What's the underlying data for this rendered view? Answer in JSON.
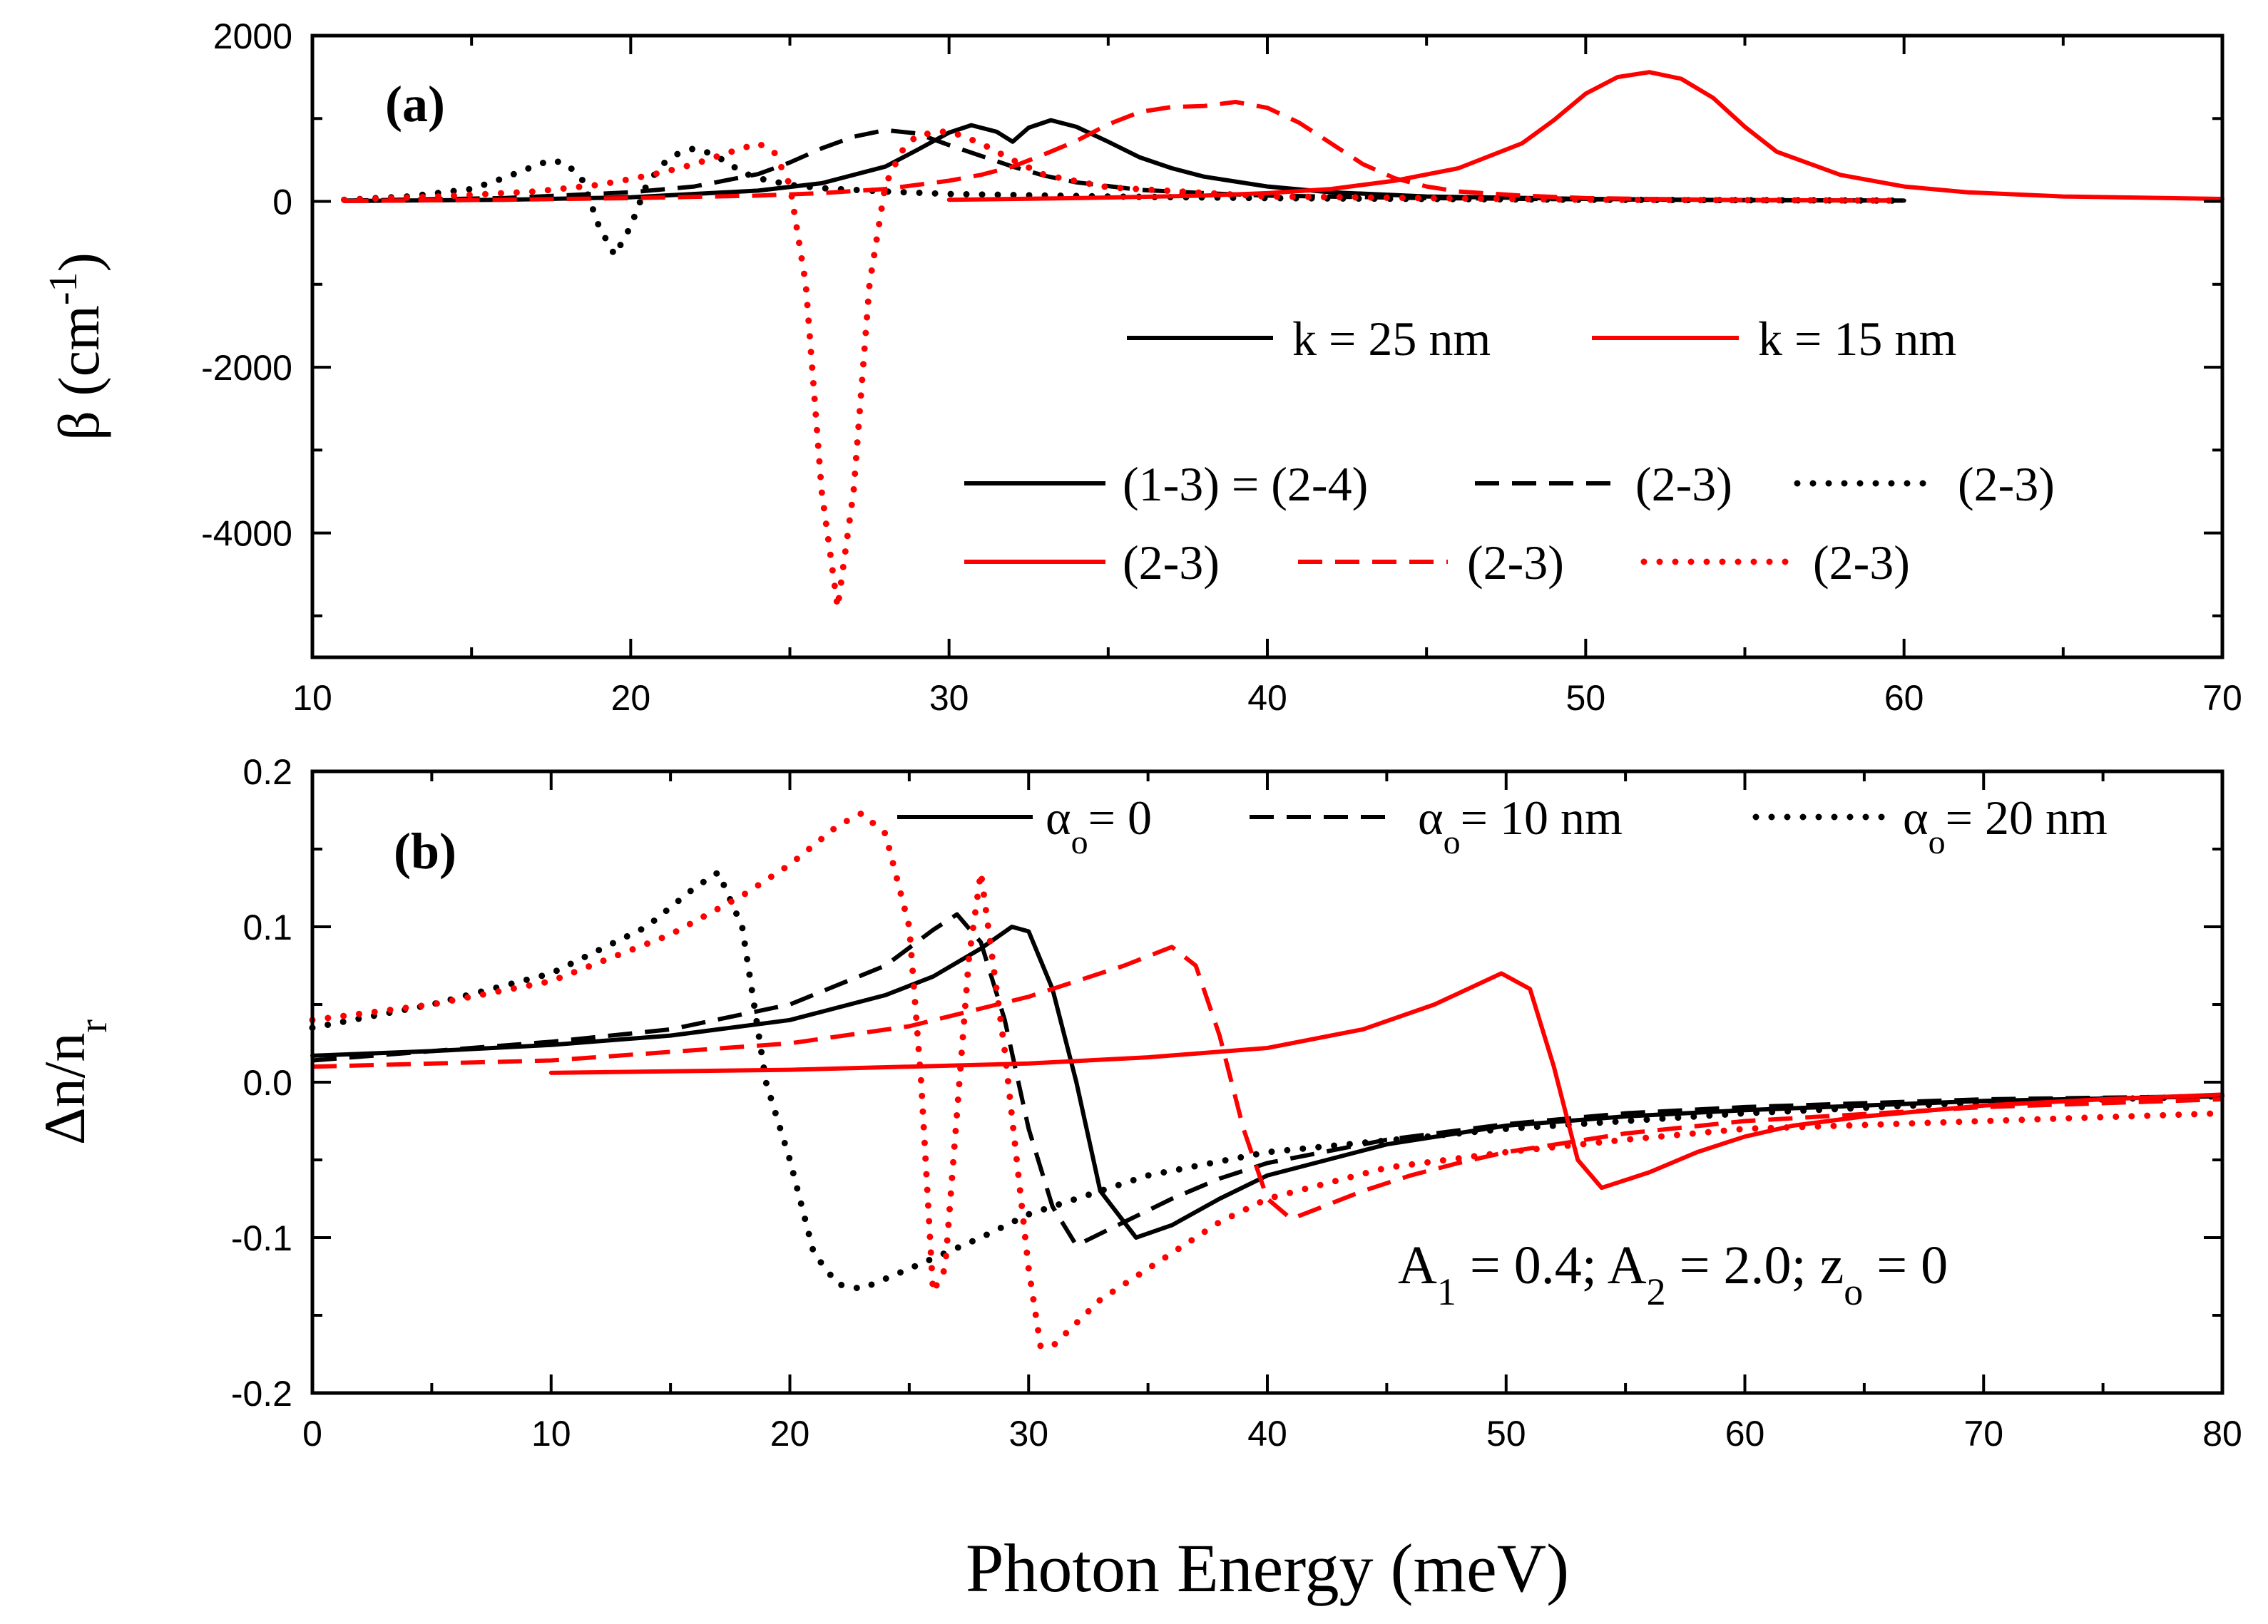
{
  "xlabel": "Photon Energy (meV)",
  "chart_data": [
    {
      "id": "a",
      "type": "line",
      "panel_label": "(a)",
      "ylabel": "β (cm",
      "ylabel_sup": "-1",
      "ylabel_close": ")",
      "xlim": [
        10,
        70
      ],
      "ylim": [
        -5500,
        2000
      ],
      "xticks": [
        10,
        20,
        30,
        40,
        50,
        60,
        70
      ],
      "xtick_labels": [
        "10",
        "20",
        "30",
        "40",
        "50",
        "60",
        "70"
      ],
      "yticks": [
        2000,
        0,
        -2000,
        -4000
      ],
      "ytick_labels": [
        "2000",
        "0",
        "-2000",
        "-4000"
      ],
      "legend": {
        "k_labels": [
          "k = 25 nm",
          "k = 15 nm"
        ],
        "row1": [
          "(1-3) = (2-4)",
          "(2-3)",
          "(2-3)"
        ],
        "row2": [
          "(2-3)",
          "(2-3)",
          "(2-3)"
        ]
      },
      "series": [
        {
          "name": "k=25 nm solid",
          "color": "#000000",
          "style": "solid",
          "x": [
            11,
            16,
            20,
            24,
            26,
            28,
            29,
            30,
            30.7,
            31.5,
            32,
            32.5,
            33.2,
            34,
            35,
            36,
            37,
            38,
            40,
            42,
            45,
            50,
            55,
            60
          ],
          "y": [
            5,
            20,
            50,
            130,
            220,
            420,
            620,
            830,
            920,
            840,
            720,
            890,
            980,
            900,
            720,
            530,
            400,
            300,
            180,
            110,
            60,
            30,
            15,
            10
          ]
        },
        {
          "name": "k=25 nm dashed",
          "color": "#000000",
          "style": "dashed",
          "x": [
            11,
            16,
            20,
            22,
            24,
            25,
            26,
            27,
            28,
            29,
            30,
            31,
            32,
            33,
            34,
            36,
            38,
            40,
            45,
            50,
            55,
            60
          ],
          "y": [
            10,
            40,
            110,
            180,
            330,
            470,
            640,
            780,
            860,
            820,
            680,
            550,
            420,
            310,
            230,
            140,
            100,
            70,
            40,
            25,
            15,
            10
          ]
        },
        {
          "name": "k=25 nm dotted",
          "color": "#000000",
          "style": "dotted",
          "x": [
            11,
            13,
            15,
            16,
            17,
            17.5,
            18,
            18.5,
            19,
            19.5,
            20,
            20.5,
            21,
            21.5,
            22,
            22.5,
            23,
            23.5,
            24,
            25,
            26,
            28,
            30,
            35,
            40,
            50,
            60
          ],
          "y": [
            20,
            60,
            150,
            280,
            430,
            500,
            450,
            250,
            -300,
            -650,
            -300,
            200,
            450,
            580,
            640,
            580,
            480,
            350,
            280,
            200,
            160,
            120,
            90,
            60,
            40,
            20,
            10
          ]
        },
        {
          "name": "k=15 nm solid",
          "color": "#ff0000",
          "style": "solid",
          "x": [
            30,
            34,
            38,
            40,
            42,
            44,
            46,
            48,
            49,
            50,
            51,
            52,
            53,
            54,
            55,
            56,
            58,
            60,
            62,
            65,
            70
          ],
          "y": [
            20,
            40,
            70,
            100,
            150,
            250,
            400,
            700,
            980,
            1300,
            1500,
            1560,
            1480,
            1250,
            900,
            600,
            320,
            180,
            110,
            60,
            30
          ]
        },
        {
          "name": "k=15 nm dashed",
          "color": "#ff0000",
          "style": "dashed",
          "x": [
            11,
            16,
            20,
            24,
            26,
            28,
            30,
            31,
            32,
            33,
            34,
            35,
            36,
            37,
            38,
            39,
            40,
            41,
            42,
            43,
            44,
            45,
            46,
            48,
            50,
            55,
            60
          ],
          "y": [
            5,
            20,
            40,
            70,
            100,
            150,
            250,
            320,
            420,
            570,
            730,
            930,
            1080,
            1140,
            1150,
            1200,
            1130,
            950,
            700,
            450,
            280,
            180,
            120,
            70,
            40,
            15,
            10
          ]
        },
        {
          "name": "k=15 nm dotted",
          "color": "#ff0000",
          "style": "dotted",
          "x": [
            11,
            14,
            17,
            19,
            20,
            21,
            22,
            23,
            23.5,
            24,
            24.5,
            25,
            25.5,
            26,
            26.5,
            27,
            27.5,
            28,
            28.5,
            29,
            30,
            31,
            32,
            33,
            35,
            40,
            50,
            60
          ],
          "y": [
            20,
            60,
            120,
            200,
            270,
            350,
            450,
            580,
            640,
            700,
            600,
            200,
            -1000,
            -3500,
            -4900,
            -3500,
            -1000,
            200,
            600,
            800,
            850,
            700,
            500,
            320,
            170,
            60,
            20,
            10
          ]
        }
      ]
    },
    {
      "id": "b",
      "type": "line",
      "panel_label": "(b)",
      "ylabel": "Δn/n",
      "ylabel_sub": "r",
      "xlim": [
        0,
        80
      ],
      "ylim": [
        -0.2,
        0.2
      ],
      "xticks": [
        0,
        10,
        20,
        30,
        40,
        50,
        60,
        70,
        80
      ],
      "xtick_labels": [
        "0",
        "10",
        "20",
        "30",
        "40",
        "50",
        "60",
        "70",
        "80"
      ],
      "yticks": [
        0.2,
        0.1,
        0.0,
        -0.1,
        -0.2
      ],
      "ytick_labels": [
        "0.2",
        "0.1",
        "0.0",
        "-0.1",
        "-0.2"
      ],
      "legend": {
        "alpha": "α",
        "alpha_sub": "o",
        "alpha_values": [
          "= 0",
          "= 10 nm",
          "= 20 nm"
        ]
      },
      "annotation": {
        "a1": "A",
        "a1_sub": "1",
        "a1_val": " = 0.4; ",
        "a2": "A",
        "a2_sub": "2",
        "a2_val": " = 2.0; ",
        "z": "z",
        "z_sub": "o",
        "z_val": " = 0"
      },
      "series": [
        {
          "name": "k=25 nm α=0",
          "color": "#000000",
          "style": "solid",
          "x": [
            0,
            5,
            10,
            15,
            20,
            24,
            26,
            28,
            29.3,
            30,
            31,
            32,
            33,
            34.5,
            36,
            38,
            40,
            45,
            50,
            55,
            60,
            70,
            80
          ],
          "y": [
            0.017,
            0.02,
            0.024,
            0.03,
            0.04,
            0.056,
            0.068,
            0.086,
            0.1,
            0.097,
            0.06,
            0.0,
            -0.07,
            -0.1,
            -0.092,
            -0.075,
            -0.06,
            -0.04,
            -0.028,
            -0.022,
            -0.018,
            -0.012,
            -0.009
          ]
        },
        {
          "name": "k=25 nm α=10",
          "color": "#000000",
          "style": "dashed",
          "x": [
            0,
            5,
            10,
            15,
            20,
            24,
            26,
            27,
            28,
            29,
            30,
            31,
            32,
            34,
            36,
            38,
            40,
            45,
            50,
            55,
            60,
            70,
            80
          ],
          "y": [
            0.014,
            0.02,
            0.026,
            0.034,
            0.05,
            0.075,
            0.098,
            0.108,
            0.09,
            0.04,
            -0.03,
            -0.08,
            -0.105,
            -0.09,
            -0.075,
            -0.062,
            -0.052,
            -0.037,
            -0.027,
            -0.02,
            -0.016,
            -0.011,
            -0.009
          ]
        },
        {
          "name": "k=25 nm α=20",
          "color": "#000000",
          "style": "dotted",
          "x": [
            0,
            5,
            10,
            14,
            16,
            17,
            18,
            18.5,
            19,
            20,
            21,
            22,
            23,
            25,
            28,
            30,
            35,
            40,
            50,
            60,
            70,
            80
          ],
          "y": [
            0.035,
            0.05,
            0.07,
            0.1,
            0.125,
            0.135,
            0.1,
            0.05,
            0.0,
            -0.05,
            -0.11,
            -0.13,
            -0.133,
            -0.12,
            -0.1,
            -0.085,
            -0.06,
            -0.045,
            -0.03,
            -0.02,
            -0.013,
            -0.009
          ]
        },
        {
          "name": "k=15 nm α=0",
          "color": "#ff0000",
          "style": "solid",
          "x": [
            10,
            20,
            30,
            35,
            40,
            44,
            47,
            49.8,
            51,
            52,
            53,
            54,
            56,
            58,
            60,
            62,
            65,
            70,
            75,
            80
          ],
          "y": [
            0.006,
            0.008,
            0.012,
            0.016,
            0.022,
            0.034,
            0.05,
            0.07,
            0.06,
            0.01,
            -0.05,
            -0.068,
            -0.058,
            -0.045,
            -0.035,
            -0.028,
            -0.022,
            -0.015,
            -0.011,
            -0.008
          ]
        },
        {
          "name": "k=15 nm α=10",
          "color": "#ff0000",
          "style": "dashed",
          "x": [
            0,
            10,
            20,
            25,
            30,
            32,
            34,
            36,
            37,
            38,
            39,
            40,
            41,
            42,
            44,
            46,
            48,
            50,
            55,
            60,
            70,
            80
          ],
          "y": [
            0.01,
            0.014,
            0.025,
            0.036,
            0.055,
            0.065,
            0.075,
            0.087,
            0.075,
            0.03,
            -0.03,
            -0.075,
            -0.088,
            -0.082,
            -0.07,
            -0.06,
            -0.052,
            -0.045,
            -0.033,
            -0.025,
            -0.016,
            -0.011
          ]
        },
        {
          "name": "k=15 nm α=20 (first)",
          "color": "#ff0000",
          "style": "dotted",
          "x": [
            0,
            5,
            10,
            15,
            18,
            20,
            22,
            23,
            24,
            25,
            25.5,
            26,
            26.5,
            27,
            27.5,
            28,
            29,
            30,
            30.5,
            31,
            33,
            35,
            38,
            40,
            45,
            50,
            55,
            60,
            70,
            80
          ],
          "y": [
            0.04,
            0.05,
            0.065,
            0.095,
            0.12,
            0.14,
            0.165,
            0.173,
            0.16,
            0.1,
            0.0,
            -0.135,
            -0.12,
            -0.02,
            0.08,
            0.135,
            0.02,
            -0.12,
            -0.17,
            -0.17,
            -0.14,
            -0.12,
            -0.09,
            -0.075,
            -0.055,
            -0.045,
            -0.037,
            -0.03,
            -0.025,
            -0.02
          ]
        }
      ]
    }
  ]
}
